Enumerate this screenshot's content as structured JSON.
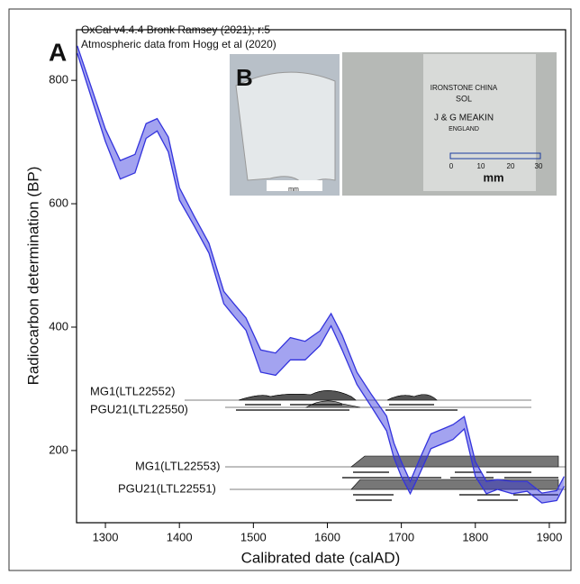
{
  "chart_data": {
    "type": "band",
    "panel_label": "A",
    "notes": [
      "OxCal v4.4.4 Bronk Ramsey (2021); r:5",
      "Atmospheric data from Hogg et al (2020)"
    ],
    "xlabel": "Calibrated date (calAD)",
    "ylabel": "Radiocarbon determination (BP)",
    "x": [
      1262,
      1280,
      1300,
      1320,
      1340,
      1355,
      1370,
      1385,
      1400,
      1420,
      1440,
      1460,
      1475,
      1490,
      1510,
      1530,
      1550,
      1570,
      1590,
      1605,
      1620,
      1640,
      1660,
      1680,
      1690,
      1700,
      1712,
      1725,
      1740,
      1760,
      1770,
      1785,
      1800,
      1815,
      1830,
      1850,
      1870,
      1890,
      1910,
      1920
    ],
    "upper": [
      856,
      792,
      721,
      670,
      680,
      730,
      738,
      708,
      626,
      580,
      536,
      458,
      436,
      415,
      363,
      358,
      383,
      377,
      394,
      422,
      387,
      327,
      290,
      256,
      212,
      182,
      150,
      187,
      227,
      237,
      242,
      255,
      182,
      150,
      153,
      150,
      150,
      131,
      135,
      158
    ],
    "lower": [
      844,
      776,
      701,
      640,
      650,
      706,
      718,
      684,
      606,
      564,
      520,
      438,
      416,
      395,
      327,
      322,
      347,
      347,
      370,
      402,
      363,
      307,
      270,
      232,
      188,
      158,
      130,
      163,
      203,
      213,
      218,
      235,
      158,
      130,
      137,
      130,
      134,
      115,
      119,
      142
    ],
    "color": "#3333dd",
    "xlim": [
      1261,
      1922
    ],
    "ylim": [
      83,
      882
    ],
    "xticks": [
      1300,
      1400,
      1500,
      1600,
      1700,
      1800,
      1900
    ],
    "yticks": [
      200,
      400,
      600,
      800
    ],
    "samples": [
      "MG1(LTL22552)",
      "PGU21(LTL22550)",
      "MG1(LTL22553)",
      "PGU21(LTL22551)"
    ],
    "inset": {
      "label": "B",
      "scale_unit": "mm",
      "scale_ticks": [
        "0",
        "10",
        "20",
        "30"
      ],
      "stamp": [
        "IRONSTONE CHINA",
        "SOL",
        "J & G MEAKIN",
        "ENGLAND"
      ]
    }
  }
}
